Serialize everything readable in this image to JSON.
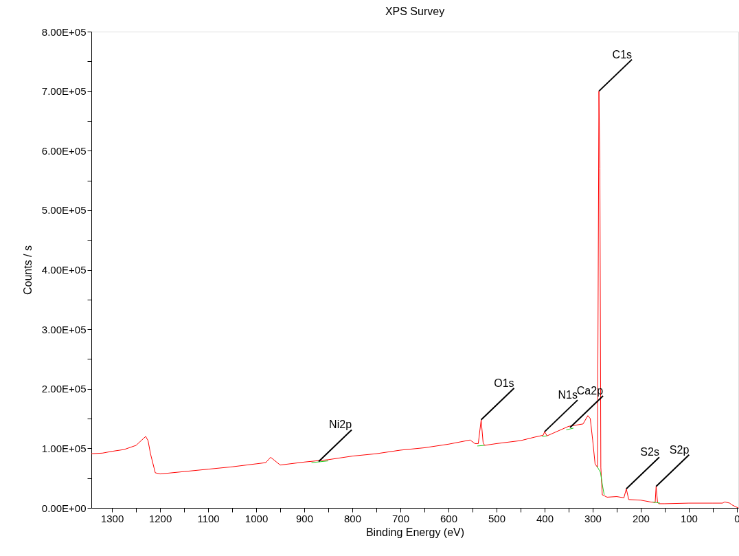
{
  "chart_data": {
    "type": "line",
    "title": "XPS Survey",
    "xlabel": "Binding Energy (eV)",
    "ylabel": "Counts / s",
    "xlim": [
      1343,
      -3
    ],
    "ylim": [
      0,
      800000
    ],
    "xticks": [
      {
        "value": 1300,
        "label": "1300"
      },
      {
        "value": 1250,
        "label": null
      },
      {
        "value": 1200,
        "label": "1200"
      },
      {
        "value": 1150,
        "label": null
      },
      {
        "value": 1100,
        "label": "1100"
      },
      {
        "value": 1050,
        "label": null
      },
      {
        "value": 1000,
        "label": "1000"
      },
      {
        "value": 950,
        "label": null
      },
      {
        "value": 900,
        "label": "900"
      },
      {
        "value": 850,
        "label": null
      },
      {
        "value": 800,
        "label": "800"
      },
      {
        "value": 750,
        "label": null
      },
      {
        "value": 700,
        "label": "700"
      },
      {
        "value": 650,
        "label": null
      },
      {
        "value": 600,
        "label": "600"
      },
      {
        "value": 550,
        "label": null
      },
      {
        "value": 500,
        "label": "500"
      },
      {
        "value": 450,
        "label": null
      },
      {
        "value": 400,
        "label": "400"
      },
      {
        "value": 350,
        "label": null
      },
      {
        "value": 300,
        "label": "300"
      },
      {
        "value": 250,
        "label": null
      },
      {
        "value": 200,
        "label": "200"
      },
      {
        "value": 150,
        "label": null
      },
      {
        "value": 100,
        "label": "100"
      },
      {
        "value": 50,
        "label": null
      },
      {
        "value": 0,
        "label": "0"
      }
    ],
    "yticks": [
      {
        "value": 0,
        "label": "0.00E+00"
      },
      {
        "value": 50000,
        "label": null
      },
      {
        "value": 100000,
        "label": "1.00E+05"
      },
      {
        "value": 150000,
        "label": null
      },
      {
        "value": 200000,
        "label": "2.00E+05"
      },
      {
        "value": 250000,
        "label": null
      },
      {
        "value": 300000,
        "label": "3.00E+05"
      },
      {
        "value": 350000,
        "label": null
      },
      {
        "value": 400000,
        "label": "4.00E+05"
      },
      {
        "value": 450000,
        "label": null
      },
      {
        "value": 500000,
        "label": "5.00E+05"
      },
      {
        "value": 550000,
        "label": null
      },
      {
        "value": 600000,
        "label": "6.00E+05"
      },
      {
        "value": 650000,
        "label": null
      },
      {
        "value": 700000,
        "label": "7.00E+05"
      },
      {
        "value": 750000,
        "label": null
      },
      {
        "value": 800000,
        "label": "8.00E+05"
      }
    ],
    "grid": false,
    "legend": false,
    "marker": "none",
    "line_style": "solid",
    "series": [
      {
        "color": "#ff0000",
        "x": [
          1343,
          1320,
          1300,
          1275,
          1250,
          1230,
          1225,
          1220,
          1210,
          1200,
          1150,
          1100,
          1050,
          1000,
          980,
          970,
          950,
          900,
          850,
          800,
          750,
          700,
          650,
          600,
          555,
          545,
          538,
          532,
          528,
          525,
          500,
          450,
          420,
          403,
          400,
          395,
          350,
          320,
          310,
          305,
          300,
          295,
          290,
          287,
          285,
          283,
          280,
          275,
          270,
          250,
          235,
          230,
          225,
          200,
          180,
          170,
          168,
          165,
          162,
          150,
          100,
          50,
          30,
          25,
          15,
          10,
          0,
          -3
        ],
        "values": [
          91000,
          92000,
          95000,
          98000,
          105000,
          120000,
          113000,
          91000,
          59000,
          57000,
          61000,
          65000,
          69000,
          74000,
          76000,
          85000,
          72000,
          77000,
          81000,
          87000,
          91000,
          97000,
          101000,
          107000,
          114000,
          108000,
          108000,
          148000,
          110000,
          105000,
          108000,
          113000,
          119000,
          122000,
          128000,
          121000,
          137000,
          141000,
          155000,
          150000,
          114000,
          74000,
          68000,
          700000,
          570000,
          68000,
          22000,
          20000,
          18000,
          19000,
          17000,
          32000,
          14000,
          13000,
          10000,
          9000,
          36000,
          9000,
          7000,
          7000,
          8000,
          8000,
          8000,
          10000,
          8000,
          5000,
          1000,
          0
        ]
      },
      {
        "color": "#22cc22",
        "x": [
          885,
          850,
          null,
          540,
          525,
          null,
          405,
          395,
          null,
          355,
          340,
          null,
          291,
          284,
          279,
          276,
          null,
          175,
          160
        ],
        "values": [
          76000,
          79000,
          null,
          104000,
          105000,
          null,
          120000,
          121000,
          null,
          131000,
          134000,
          null,
          70000,
          60000,
          35000,
          22000,
          null,
          10000,
          8000
        ]
      }
    ],
    "annotations": [
      {
        "text": "Ni2p",
        "x": 870,
        "y": 78000
      },
      {
        "text": "O1s",
        "x": 532,
        "y": 148000
      },
      {
        "text": "N1s",
        "x": 400,
        "y": 128000
      },
      {
        "text": "Ca2p",
        "x": 347,
        "y": 135000
      },
      {
        "text": "C1s",
        "x": 287,
        "y": 700000
      },
      {
        "text": "S2s",
        "x": 230,
        "y": 32000
      },
      {
        "text": "S2p",
        "x": 168,
        "y": 36000
      }
    ]
  }
}
